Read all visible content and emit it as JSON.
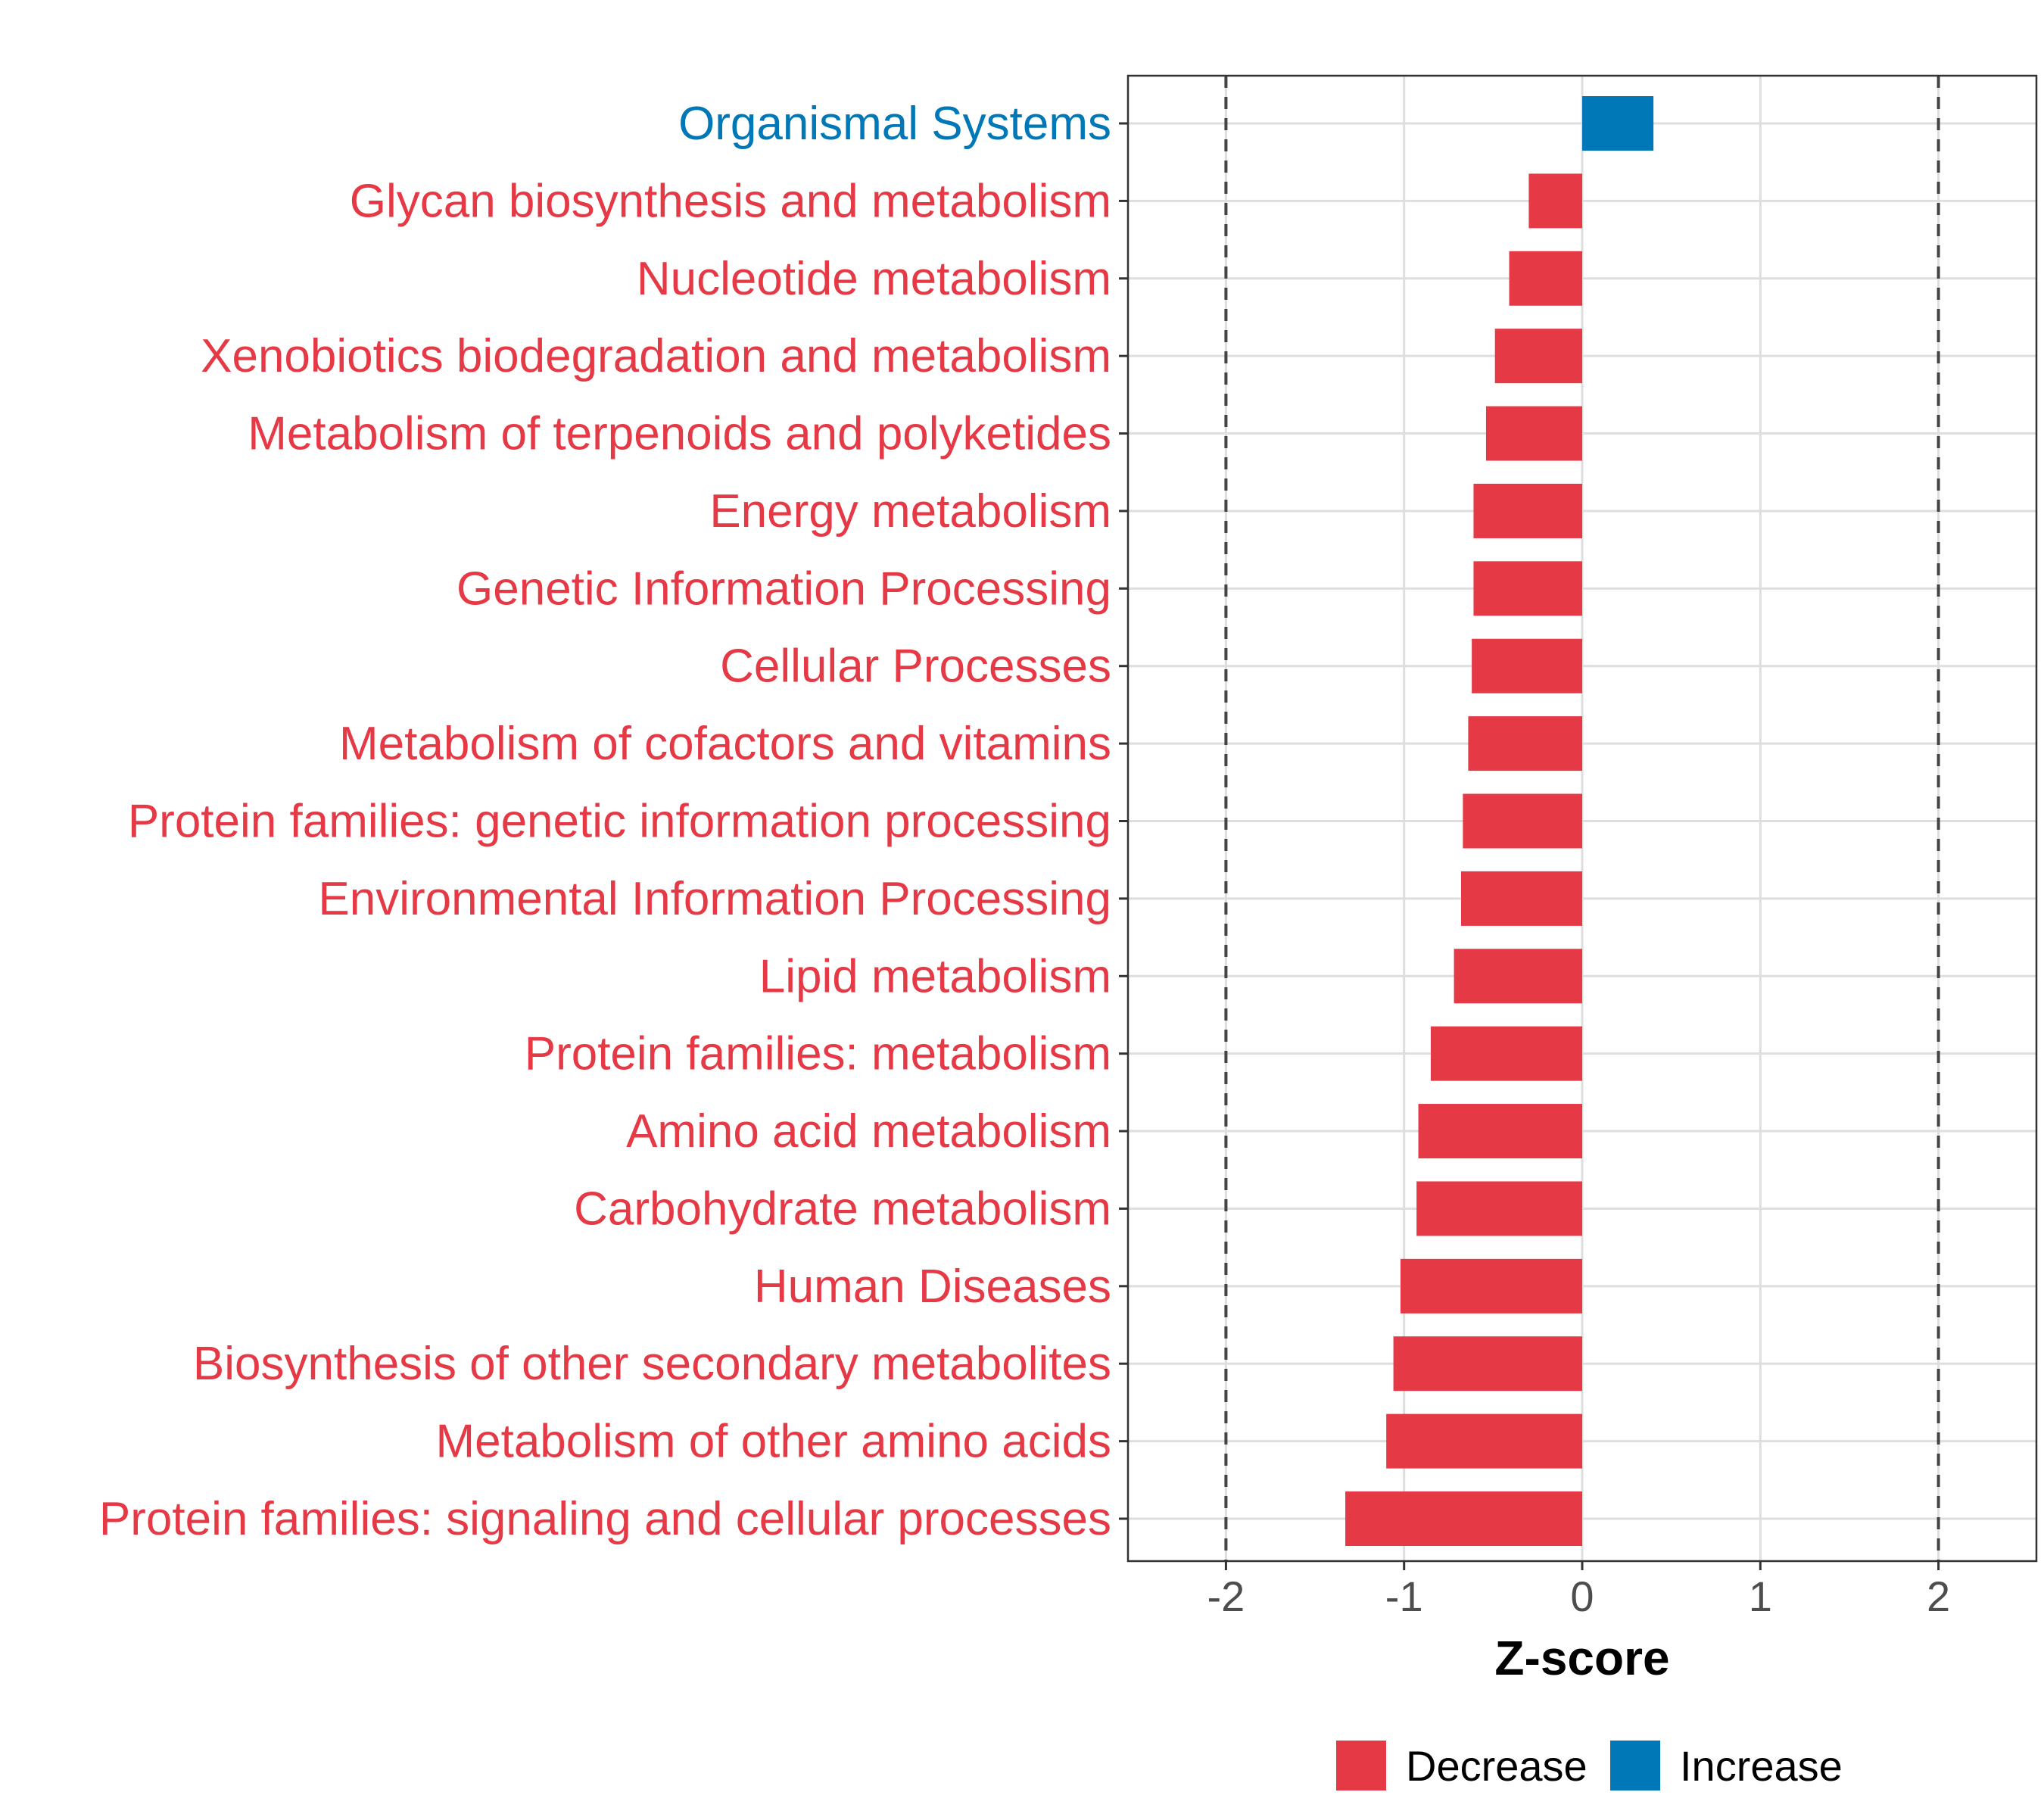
{
  "chart_data": {
    "type": "bar",
    "orientation": "horizontal",
    "title": "",
    "xlabel": "Z-score",
    "ylabel": "",
    "xlim": [
      -2.55,
      2.55
    ],
    "xticks": [
      "-2",
      "-1",
      "0",
      "1",
      "2"
    ],
    "xtick_values": [
      -2,
      -1,
      0,
      1,
      2
    ],
    "reference_lines": [
      -2,
      2
    ],
    "grid": true,
    "categories": [
      "Organismal Systems",
      "Glycan biosynthesis and metabolism",
      "Nucleotide metabolism",
      "Xenobiotics biodegradation and metabolism",
      "Metabolism of terpenoids and polyketides",
      "Energy metabolism",
      "Genetic Information Processing",
      "Cellular Processes",
      "Metabolism of cofactors and vitamins",
      "Protein families: genetic information processing",
      "Environmental Information Processing",
      "Lipid metabolism",
      "Protein families: metabolism",
      "Amino acid metabolism",
      "Carbohydrate metabolism",
      "Human Diseases",
      "Biosynthesis of other secondary metabolites",
      "Metabolism of other amino acids",
      "Protein families: signaling and cellular processes"
    ],
    "values": [
      0.4,
      -0.3,
      -0.41,
      -0.49,
      -0.54,
      -0.61,
      -0.61,
      -0.62,
      -0.64,
      -0.67,
      -0.68,
      -0.72,
      -0.85,
      -0.92,
      -0.93,
      -1.02,
      -1.06,
      -1.1,
      -1.33
    ],
    "groups": [
      "Increase",
      "Decrease",
      "Decrease",
      "Decrease",
      "Decrease",
      "Decrease",
      "Decrease",
      "Decrease",
      "Decrease",
      "Decrease",
      "Decrease",
      "Decrease",
      "Decrease",
      "Decrease",
      "Decrease",
      "Decrease",
      "Decrease",
      "Decrease",
      "Decrease"
    ],
    "legend": {
      "position": "bottom",
      "entries": [
        {
          "label": "Decrease",
          "color": "#E63946"
        },
        {
          "label": "Increase",
          "color": "#0077B6"
        }
      ]
    },
    "colors": {
      "Decrease": "#E63946",
      "Increase": "#0077B6"
    }
  }
}
